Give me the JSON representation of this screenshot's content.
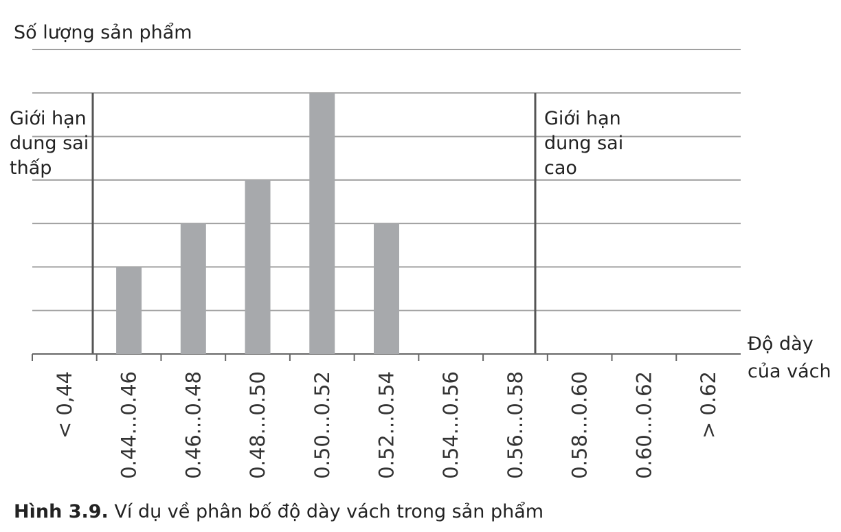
{
  "chart_data": {
    "type": "bar",
    "y_label": "Số lượng sản phẩm",
    "x_label": [
      "Độ dày",
      "của vách"
    ],
    "categories": [
      "< 0,44",
      "0.44...0.46",
      "0.46...0.48",
      "0.48...0.50",
      "0.50...0.52",
      "0.52...0.54",
      "0.54...0.56",
      "0.56...0.58",
      "0.58...0.60",
      "0.60...0.62",
      "> 0.62"
    ],
    "values": [
      0,
      2,
      3,
      4,
      6,
      3,
      0,
      0,
      0,
      0,
      0
    ],
    "color": "#a7a9ac",
    "ylim": [
      0,
      7
    ],
    "yticks": [
      1,
      2,
      3,
      4,
      5,
      6,
      7
    ],
    "grid": true,
    "annotations": {
      "low_limit": [
        "Giới hạn",
        "dung sai",
        "thấp"
      ],
      "high_limit": [
        "Giới  hạn",
        "dung  sai",
        "cao"
      ]
    },
    "caption": {
      "label": "Hình 3.9.",
      "text": "Ví dụ về phân bố độ dày vách trong sản phẩm"
    }
  }
}
